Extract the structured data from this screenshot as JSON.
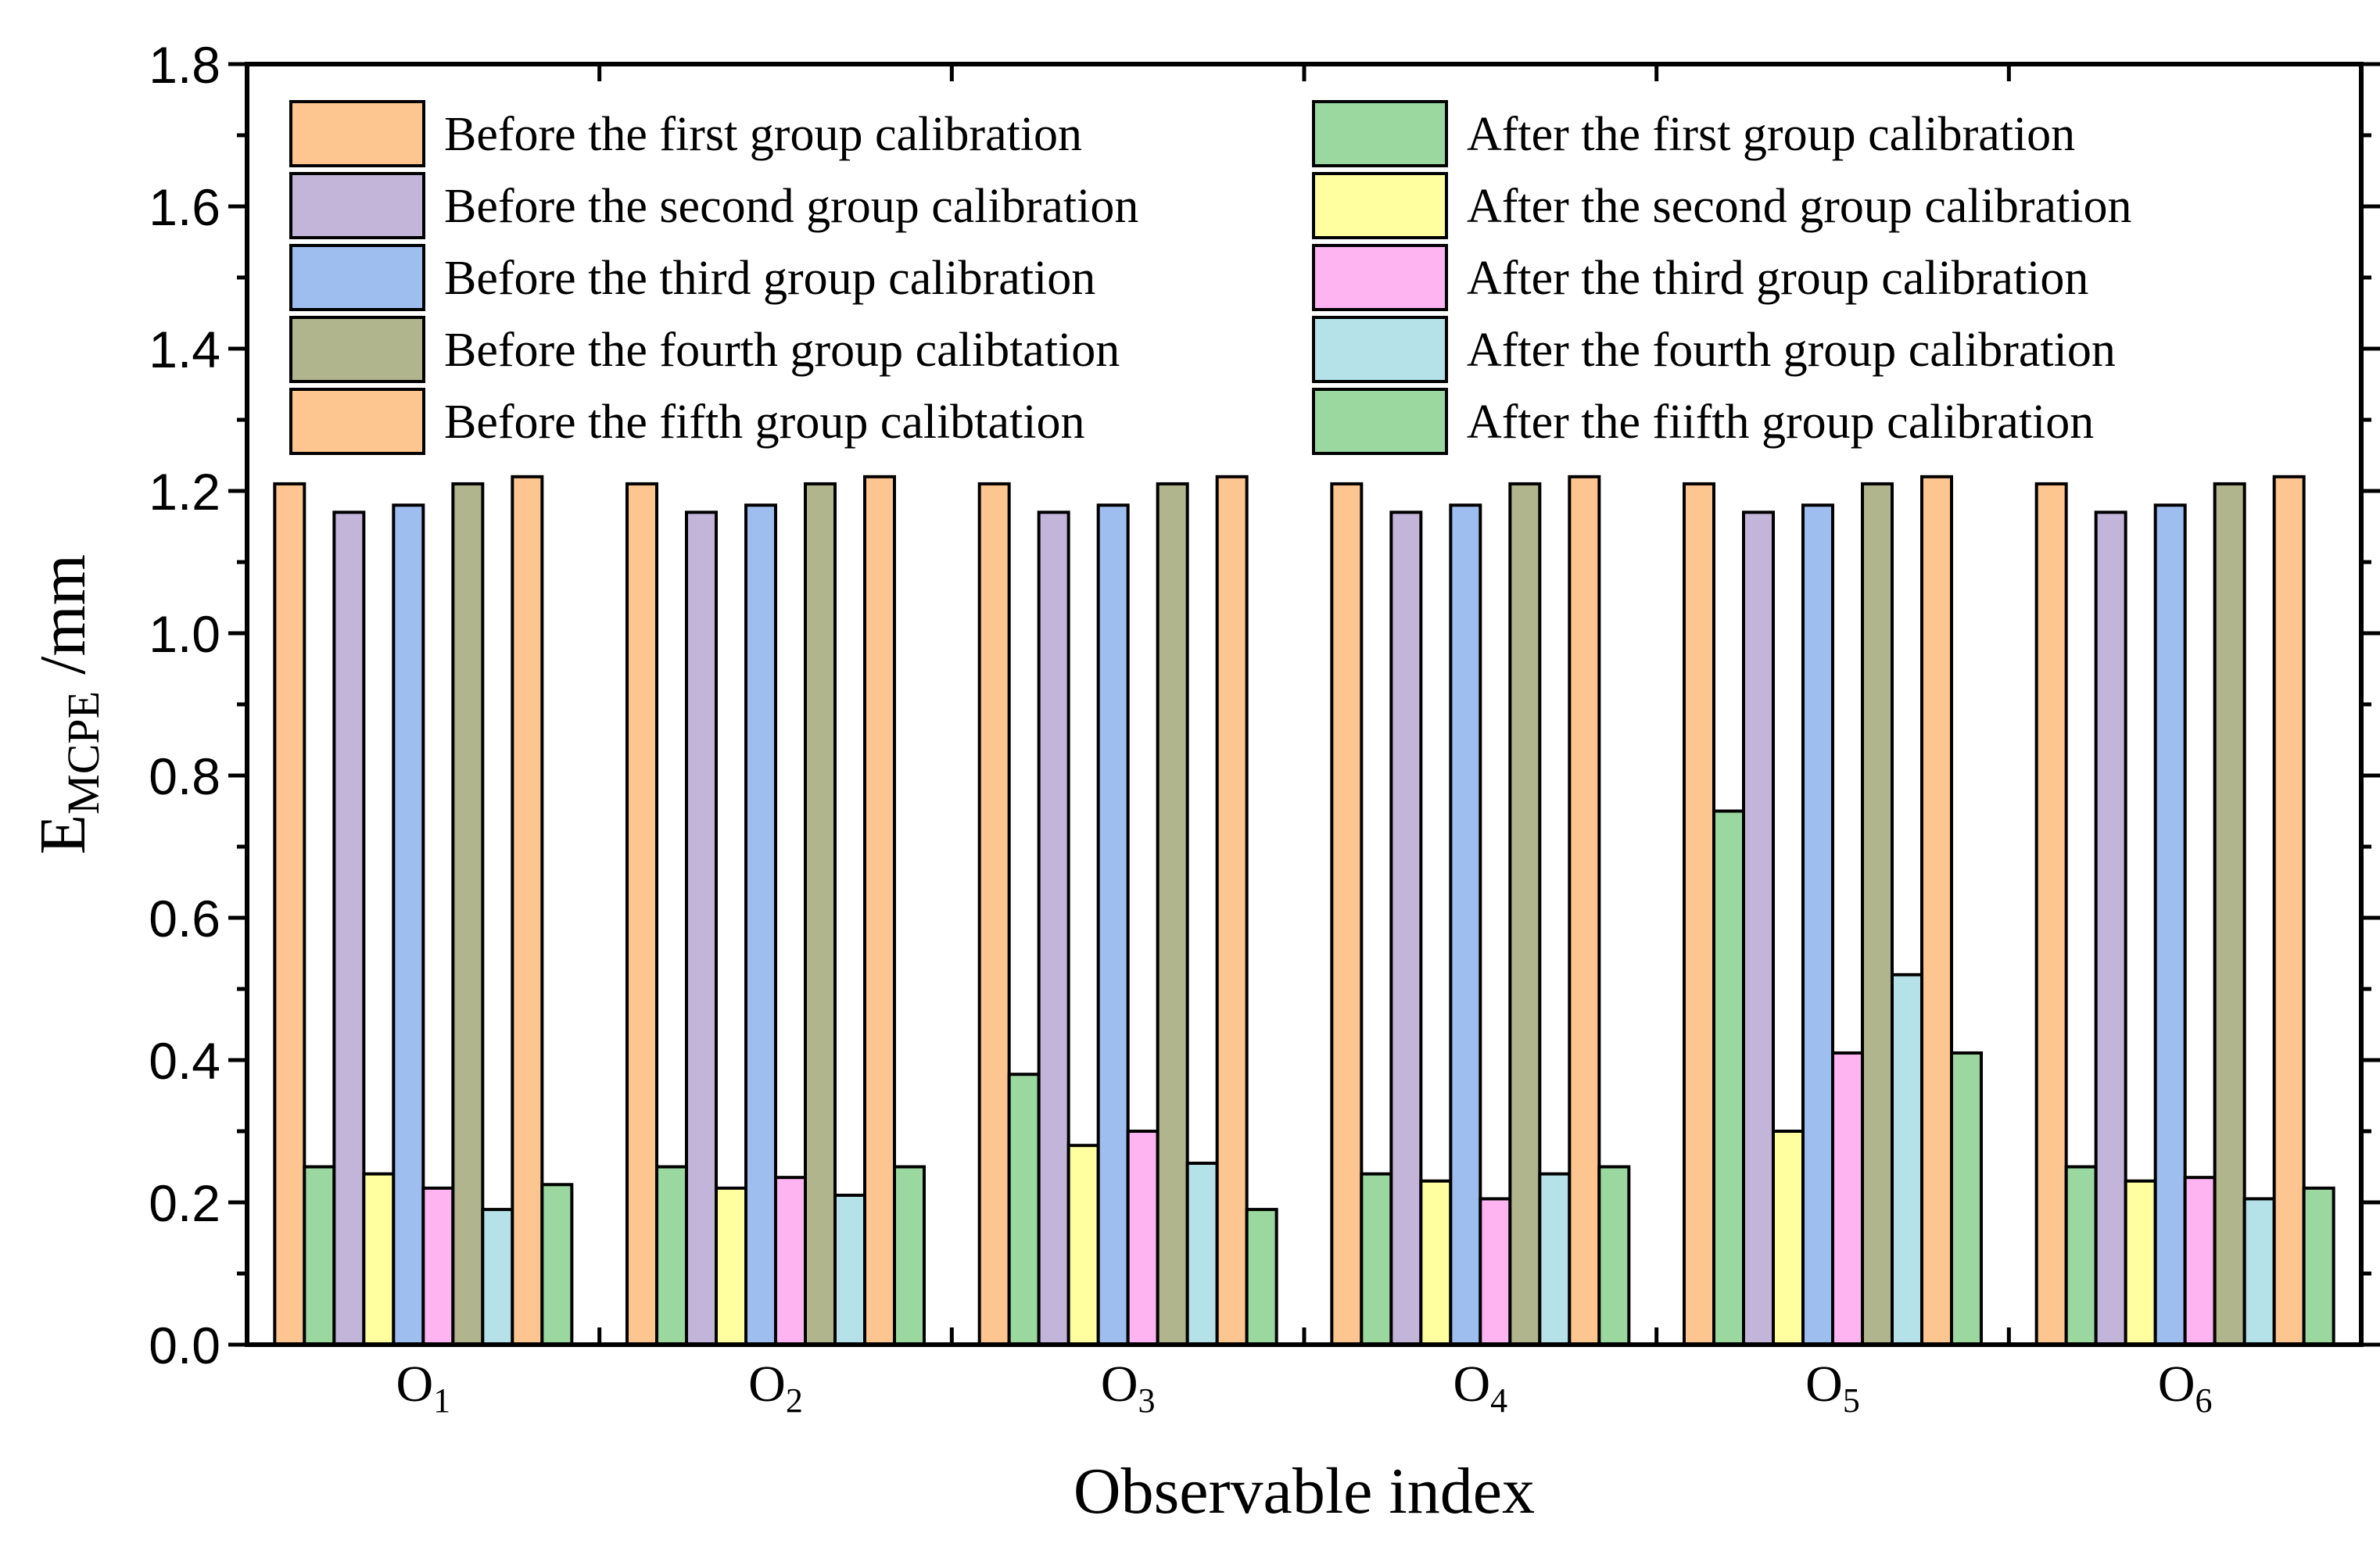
{
  "chart_data": {
    "type": "bar",
    "xlabel": "Observable index",
    "ylabel": {
      "main": "E",
      "sub": "MCPE",
      "unit": " /mm"
    },
    "ylim": [
      0,
      1.8
    ],
    "yticks": [
      "0.0",
      "0.2",
      "0.4",
      "0.6",
      "0.8",
      "1.0",
      "1.2",
      "1.4",
      "1.6",
      "1.8"
    ],
    "categories": [
      {
        "main": "O",
        "sub": "1"
      },
      {
        "main": "O",
        "sub": "2"
      },
      {
        "main": "O",
        "sub": "3"
      },
      {
        "main": "O",
        "sub": "4"
      },
      {
        "main": "O",
        "sub": "5"
      },
      {
        "main": "O",
        "sub": "6"
      }
    ],
    "legend_columns": 2,
    "series": [
      {
        "name": "Before the first group calibration",
        "color": "#FDC590",
        "values": [
          1.21,
          1.21,
          1.21,
          1.21,
          1.21,
          1.21
        ]
      },
      {
        "name": "After the first group calibration",
        "color": "#9BD8A0",
        "values": [
          0.25,
          0.25,
          0.38,
          0.24,
          0.75,
          0.25
        ]
      },
      {
        "name": "Before the second group calibration",
        "color": "#C3B4DA",
        "values": [
          1.17,
          1.17,
          1.17,
          1.17,
          1.17,
          1.17
        ]
      },
      {
        "name": "After the second group calibration",
        "color": "#FFFFA0",
        "values": [
          0.24,
          0.22,
          0.28,
          0.23,
          0.3,
          0.23
        ]
      },
      {
        "name": "Before the third group calibration",
        "color": "#9FBEF0",
        "values": [
          1.18,
          1.18,
          1.18,
          1.18,
          1.18,
          1.18
        ]
      },
      {
        "name": "After the third group calibration",
        "color": "#FFB4F2",
        "values": [
          0.22,
          0.235,
          0.3,
          0.205,
          0.41,
          0.235
        ]
      },
      {
        "name": "Before the fourth group calibtation",
        "color": "#B0B58E",
        "values": [
          1.21,
          1.21,
          1.21,
          1.21,
          1.21,
          1.21
        ]
      },
      {
        "name": "After the fourth group calibration",
        "color": "#B4E2E8",
        "values": [
          0.19,
          0.21,
          0.255,
          0.24,
          0.52,
          0.205
        ]
      },
      {
        "name": "Before the fifth group calibtation",
        "color": "#FDC590",
        "values": [
          1.22,
          1.22,
          1.22,
          1.22,
          1.22,
          1.22
        ]
      },
      {
        "name": "After the fiifth group calibration",
        "color": "#9BD8A0",
        "values": [
          0.225,
          0.25,
          0.19,
          0.25,
          0.41,
          0.22
        ]
      }
    ]
  }
}
